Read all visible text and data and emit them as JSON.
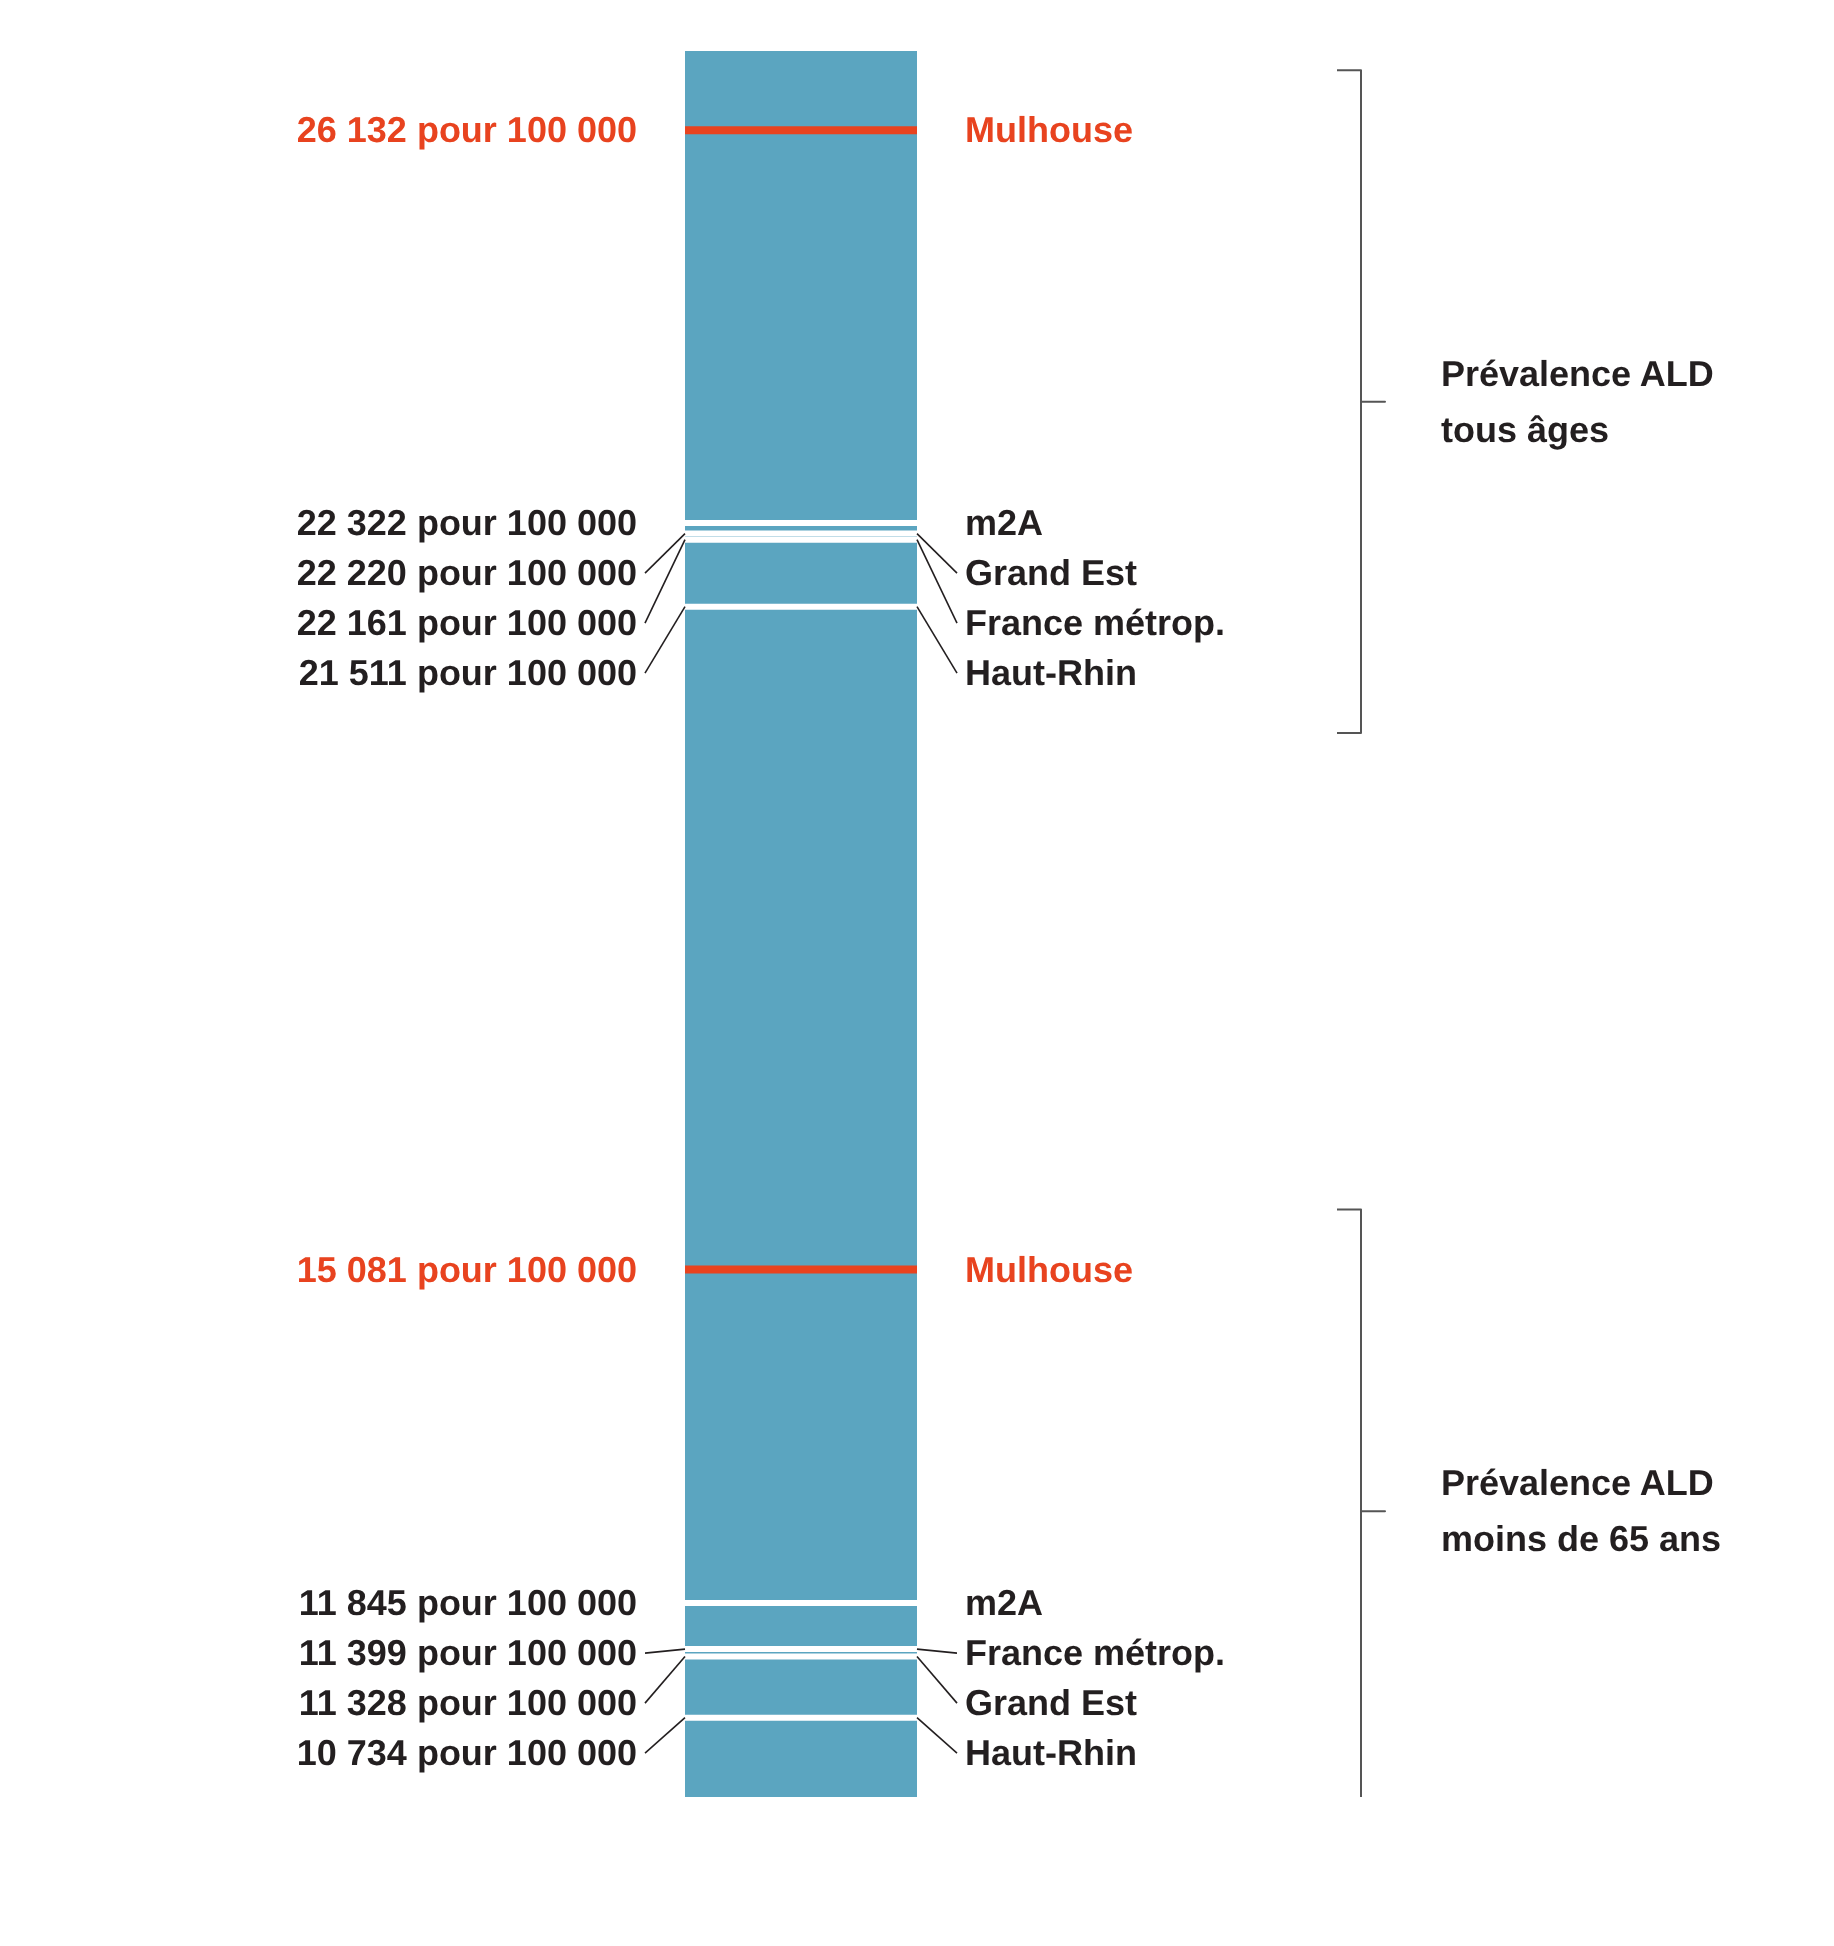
{
  "chart_data": {
    "type": "other",
    "categories": [
      "Mulhouse",
      "m2A",
      "Grand Est",
      "France métrop.",
      "Haut-Rhin"
    ],
    "series": [
      {
        "name": "Prévalence ALD tous âges",
        "values": [
          26132,
          22322,
          22220,
          22161,
          21511
        ],
        "colors": [
          "#e8431f",
          "#ffffff",
          "#ffffff",
          "#ffffff",
          "#ffffff"
        ],
        "value_labels": [
          "26 132 pour 100 000",
          "22 322 pour 100 000",
          "22 220 pour 100 000",
          "22 161 pour 100 000",
          "21 511 pour 100 000"
        ]
      },
      {
        "name": "Prévalence ALD moins de 65 ans",
        "values": [
          15081,
          11845,
          11328,
          11399,
          10734
        ],
        "colors": [
          "#e8431f",
          "#ffffff",
          "#ffffff",
          "#ffffff",
          "#ffffff"
        ],
        "value_labels": [
          "15 081 pour 100 000",
          "11 845 pour 100 000",
          "11 328 pour 100 000",
          "11 399 pour 100 000",
          "10 734 pour 100 000"
        ]
      }
    ]
  }
}
